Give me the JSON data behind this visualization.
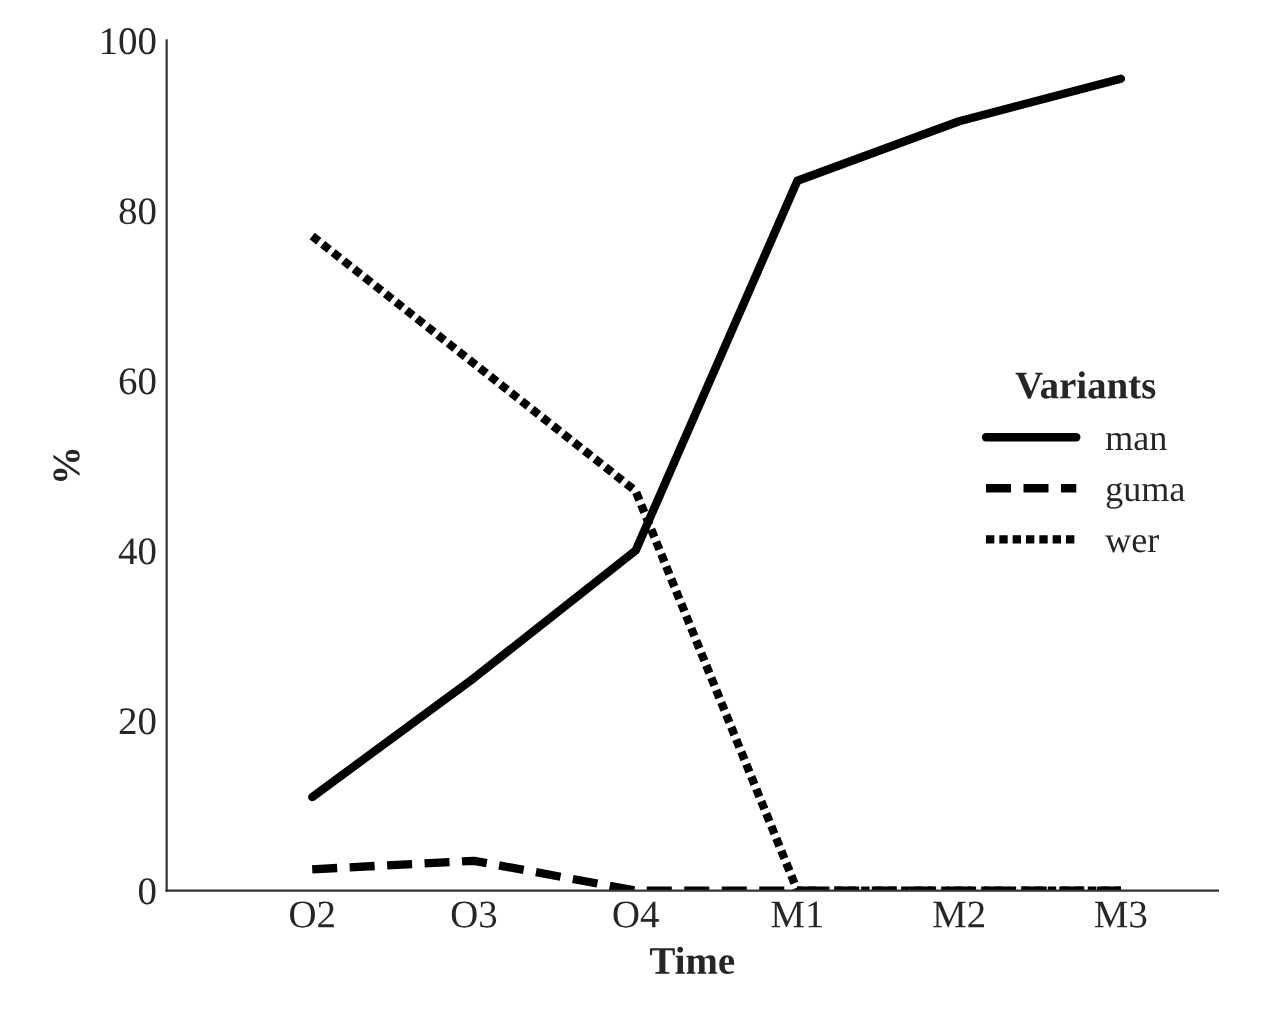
{
  "chart_data": {
    "type": "line",
    "xlabel": "Time",
    "ylabel": "%",
    "legend_title": "Variants",
    "legend": "right",
    "grid": false,
    "categories": [
      "O2",
      "O3",
      "O4",
      "M1",
      "M2",
      "M3"
    ],
    "ylim": [
      0,
      100
    ],
    "yticks": [
      0,
      20,
      40,
      60,
      80,
      100
    ],
    "series": [
      {
        "name": "man",
        "color": "#000000",
        "line_style": "solid",
        "values": [
          11,
          25,
          40,
          83.5,
          90.5,
          95.5
        ]
      },
      {
        "name": "guma",
        "color": "#000000",
        "line_style": "dashed",
        "values": [
          2.5,
          3.5,
          0,
          0,
          0,
          0
        ]
      },
      {
        "name": "wer",
        "color": "#000000",
        "line_style": "dotted",
        "values": [
          77,
          62,
          47,
          0,
          0,
          0
        ]
      }
    ]
  }
}
